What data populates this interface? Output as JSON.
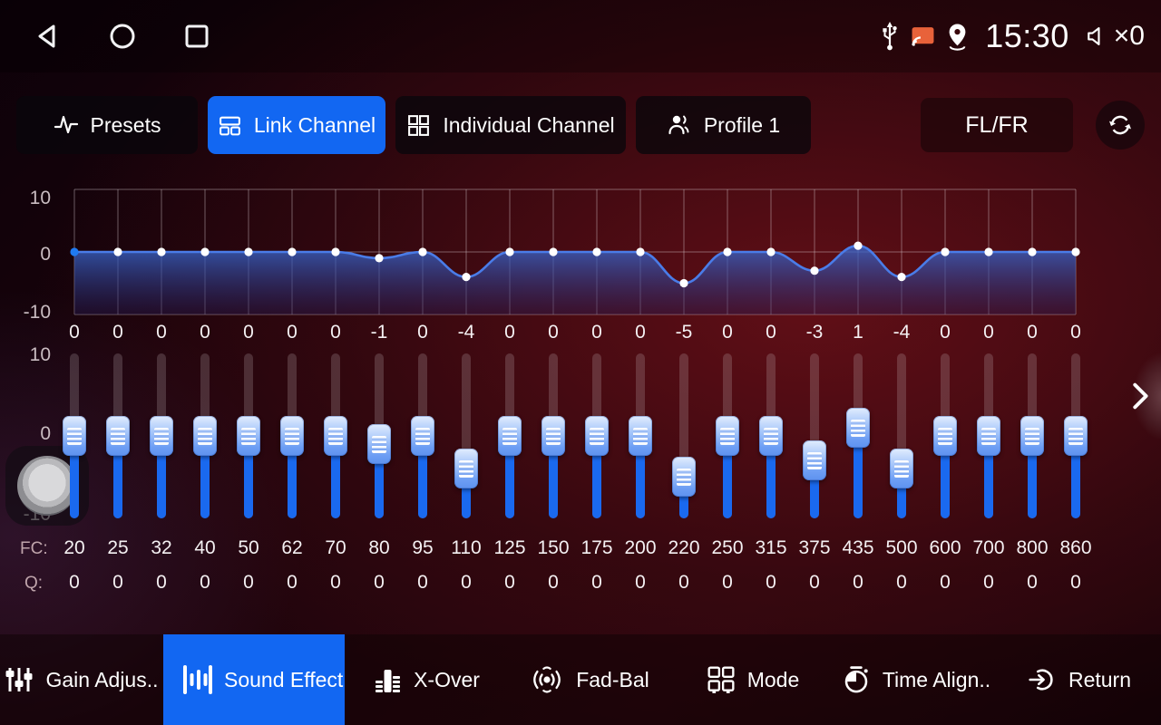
{
  "status_bar": {
    "time": "15:30",
    "volume_text": "×0",
    "icons": [
      "back-icon",
      "home-icon",
      "recents-icon",
      "usb-icon",
      "cast-icon",
      "location-icon",
      "volume-muted-icon"
    ]
  },
  "tab_bar": {
    "tabs": [
      {
        "label": "Presets",
        "icon": "waveform-icon",
        "active": false
      },
      {
        "label": "Link Channel",
        "icon": "link-channel-icon",
        "active": true
      },
      {
        "label": "Individual Channel",
        "icon": "grid-squares-icon",
        "active": false
      },
      {
        "label": "Profile 1",
        "icon": "profile-icon",
        "active": false
      }
    ],
    "channel_button": "FL/FR",
    "refresh_icon": "refresh-icon"
  },
  "equalizer": {
    "graph_axis_labels": [
      "10",
      "0",
      "-10"
    ],
    "slider_axis_labels": [
      "10",
      "0",
      "-10"
    ],
    "fc_label": "FC:",
    "q_label": "Q:",
    "gain_range": [
      -10,
      10
    ],
    "bands": [
      {
        "fc": "20",
        "gain": 0,
        "q": "0"
      },
      {
        "fc": "25",
        "gain": 0,
        "q": "0"
      },
      {
        "fc": "32",
        "gain": 0,
        "q": "0"
      },
      {
        "fc": "40",
        "gain": 0,
        "q": "0"
      },
      {
        "fc": "50",
        "gain": 0,
        "q": "0"
      },
      {
        "fc": "62",
        "gain": 0,
        "q": "0"
      },
      {
        "fc": "70",
        "gain": 0,
        "q": "0"
      },
      {
        "fc": "80",
        "gain": -1,
        "q": "0"
      },
      {
        "fc": "95",
        "gain": 0,
        "q": "0"
      },
      {
        "fc": "110",
        "gain": -4,
        "q": "0"
      },
      {
        "fc": "125",
        "gain": 0,
        "q": "0"
      },
      {
        "fc": "150",
        "gain": 0,
        "q": "0"
      },
      {
        "fc": "175",
        "gain": 0,
        "q": "0"
      },
      {
        "fc": "200",
        "gain": 0,
        "q": "0"
      },
      {
        "fc": "220",
        "gain": -5,
        "q": "0"
      },
      {
        "fc": "250",
        "gain": 0,
        "q": "0"
      },
      {
        "fc": "315",
        "gain": 0,
        "q": "0"
      },
      {
        "fc": "375",
        "gain": -3,
        "q": "0"
      },
      {
        "fc": "435",
        "gain": 1,
        "q": "0"
      },
      {
        "fc": "500",
        "gain": -4,
        "q": "0"
      },
      {
        "fc": "600",
        "gain": 0,
        "q": "0"
      },
      {
        "fc": "700",
        "gain": 0,
        "q": "0"
      },
      {
        "fc": "800",
        "gain": 0,
        "q": "0"
      },
      {
        "fc": "860",
        "gain": 0,
        "q": "0"
      }
    ]
  },
  "side_panel": {
    "chevron_icon": "chevron-right-icon"
  },
  "bottom_nav": {
    "items": [
      {
        "label": "Gain Adjus..",
        "icon": "gain-adjust-icon",
        "active": false
      },
      {
        "label": "Sound Effect",
        "icon": "sound-effect-icon",
        "active": true
      },
      {
        "label": "X-Over",
        "icon": "x-over-icon",
        "active": false
      },
      {
        "label": "Fad-Bal",
        "icon": "fad-bal-icon",
        "active": false
      },
      {
        "label": "Mode",
        "icon": "mode-icon",
        "active": false
      },
      {
        "label": "Time Align..",
        "icon": "time-align-icon",
        "active": false
      },
      {
        "label": "Return",
        "icon": "return-icon",
        "active": false
      }
    ]
  },
  "colors": {
    "accent_blue": "#1267f2",
    "slider_blue": "#1a69ef",
    "curve_blue": "#4a7ce8",
    "cast_orange": "#e8623a",
    "background_red": "#3c0a10"
  }
}
